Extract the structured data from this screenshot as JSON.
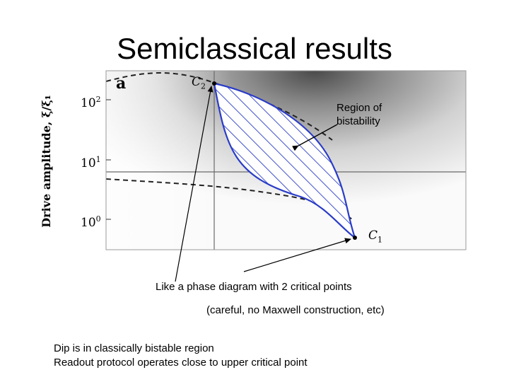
{
  "title": "Semiclassical results",
  "figure": {
    "panel_letter": "a",
    "y_axis_label": "Drive amplitude, ξ/ξ₁",
    "y_ticks": [
      {
        "base": "10",
        "exp": "2"
      },
      {
        "base": "10",
        "exp": "1"
      },
      {
        "base": "10",
        "exp": "0"
      }
    ],
    "critical_points": [
      {
        "letter": "C",
        "index": "2"
      },
      {
        "letter": "C",
        "index": "1"
      }
    ]
  },
  "annotations": {
    "region": "Region of\nbistability",
    "phase": "Like a phase diagram with 2 critical points",
    "careful": "(careful, no Maxwell construction, etc)"
  },
  "footer": {
    "line1": "Dip is in classically bistable region",
    "line2": "Readout protocol operates close to upper critical point"
  },
  "colors": {
    "region_outline": "#2a3cc8",
    "hatch": "#2a3cc8",
    "dashed_curve": "#222222",
    "arrow": "#000000"
  }
}
